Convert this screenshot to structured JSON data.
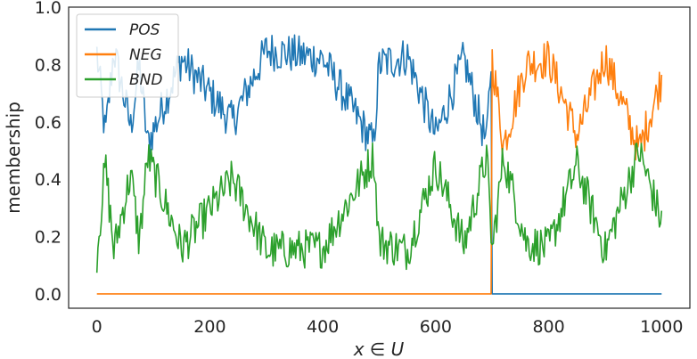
{
  "chart_data": {
    "type": "line",
    "xlabel": "x ∈ U",
    "ylabel": "membership",
    "xlim": [
      -50,
      1050
    ],
    "ylim": [
      -0.05,
      1.0
    ],
    "xticks": [
      "0",
      "200",
      "400",
      "600",
      "800",
      "1000"
    ],
    "yticks": [
      "0.0",
      "0.2",
      "0.4",
      "0.6",
      "0.8",
      "1.0"
    ],
    "grid": false,
    "legend_position": "top-left",
    "series": [
      {
        "name": "POS",
        "color": "#1f77b4",
        "x": [
          0,
          15,
          30,
          60,
          75,
          90,
          150,
          240,
          300,
          400,
          490,
          500,
          550,
          600,
          650,
          690,
          699,
          700,
          1000
        ],
        "values": [
          0.84,
          0.55,
          0.85,
          0.58,
          0.8,
          0.52,
          0.82,
          0.6,
          0.85,
          0.82,
          0.52,
          0.8,
          0.83,
          0.55,
          0.82,
          0.52,
          0.85,
          0.0,
          0.0
        ]
      },
      {
        "name": "NEG",
        "color": "#ff7f0e",
        "x": [
          0,
          699,
          700,
          720,
          760,
          800,
          850,
          900,
          960,
          1000
        ],
        "values": [
          0.0,
          0.0,
          0.82,
          0.52,
          0.8,
          0.82,
          0.55,
          0.83,
          0.5,
          0.75
        ]
      },
      {
        "name": "BND",
        "color": "#2ca02c",
        "x": [
          0,
          15,
          30,
          60,
          75,
          90,
          150,
          240,
          300,
          400,
          490,
          500,
          550,
          600,
          650,
          690,
          700,
          720,
          760,
          800,
          850,
          900,
          960,
          1000
        ],
        "values": [
          0.14,
          0.45,
          0.15,
          0.42,
          0.18,
          0.48,
          0.16,
          0.4,
          0.15,
          0.16,
          0.48,
          0.18,
          0.15,
          0.45,
          0.17,
          0.48,
          0.15,
          0.48,
          0.18,
          0.16,
          0.45,
          0.15,
          0.5,
          0.25
        ]
      }
    ]
  }
}
